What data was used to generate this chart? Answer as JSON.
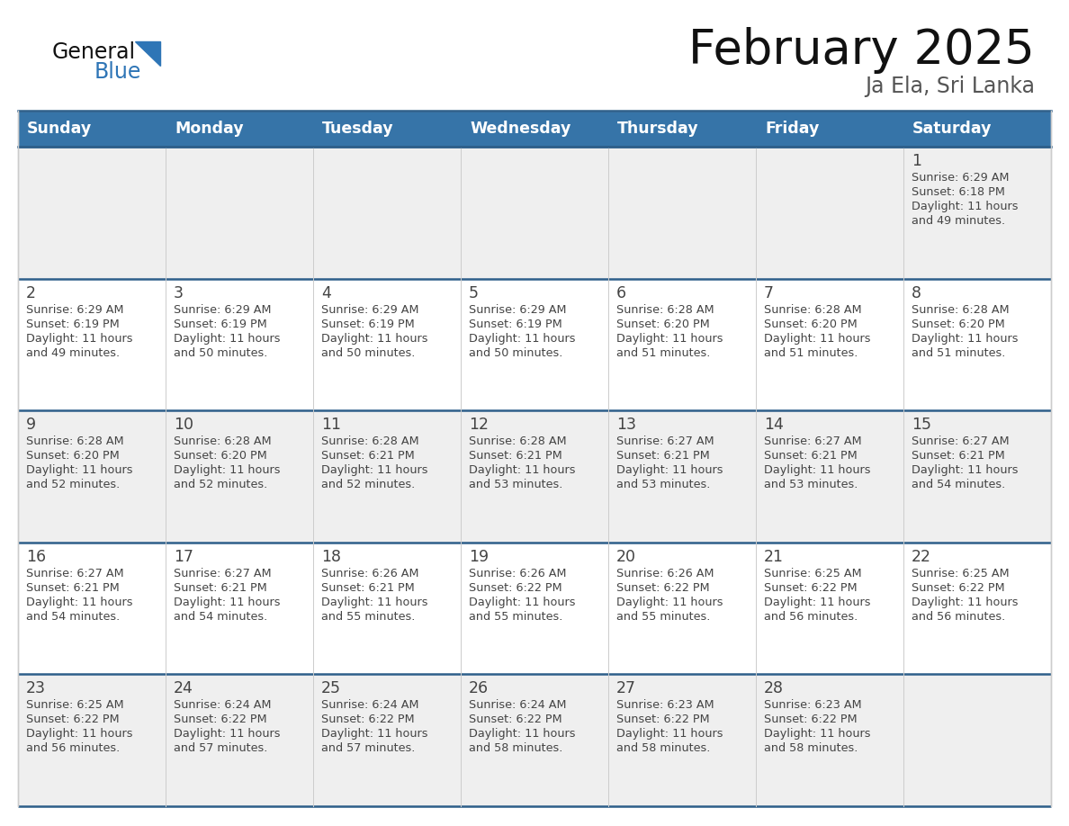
{
  "title": "February 2025",
  "subtitle": "Ja Ela, Sri Lanka",
  "days_of_week": [
    "Sunday",
    "Monday",
    "Tuesday",
    "Wednesday",
    "Thursday",
    "Friday",
    "Saturday"
  ],
  "header_bg": "#3674A8",
  "header_text": "#FFFFFF",
  "row_bg_odd": "#EFEFEF",
  "row_bg_even": "#FFFFFF",
  "row_divider_color": "#2E5F8A",
  "cell_border_color": "#CCCCCC",
  "outer_border_color": "#CCCCCC",
  "day_num_color": "#444444",
  "cell_text_color": "#444444",
  "title_color": "#111111",
  "subtitle_color": "#555555",
  "logo_general_color": "#111111",
  "logo_blue_color": "#2E75B6",
  "calendar_data": [
    [
      null,
      null,
      null,
      null,
      null,
      null,
      {
        "day": 1,
        "sunrise": "6:29 AM",
        "sunset": "6:18 PM",
        "daylight": "11 hours and 49 minutes."
      }
    ],
    [
      {
        "day": 2,
        "sunrise": "6:29 AM",
        "sunset": "6:19 PM",
        "daylight": "11 hours and 49 minutes."
      },
      {
        "day": 3,
        "sunrise": "6:29 AM",
        "sunset": "6:19 PM",
        "daylight": "11 hours and 50 minutes."
      },
      {
        "day": 4,
        "sunrise": "6:29 AM",
        "sunset": "6:19 PM",
        "daylight": "11 hours and 50 minutes."
      },
      {
        "day": 5,
        "sunrise": "6:29 AM",
        "sunset": "6:19 PM",
        "daylight": "11 hours and 50 minutes."
      },
      {
        "day": 6,
        "sunrise": "6:28 AM",
        "sunset": "6:20 PM",
        "daylight": "11 hours and 51 minutes."
      },
      {
        "day": 7,
        "sunrise": "6:28 AM",
        "sunset": "6:20 PM",
        "daylight": "11 hours and 51 minutes."
      },
      {
        "day": 8,
        "sunrise": "6:28 AM",
        "sunset": "6:20 PM",
        "daylight": "11 hours and 51 minutes."
      }
    ],
    [
      {
        "day": 9,
        "sunrise": "6:28 AM",
        "sunset": "6:20 PM",
        "daylight": "11 hours and 52 minutes."
      },
      {
        "day": 10,
        "sunrise": "6:28 AM",
        "sunset": "6:20 PM",
        "daylight": "11 hours and 52 minutes."
      },
      {
        "day": 11,
        "sunrise": "6:28 AM",
        "sunset": "6:21 PM",
        "daylight": "11 hours and 52 minutes."
      },
      {
        "day": 12,
        "sunrise": "6:28 AM",
        "sunset": "6:21 PM",
        "daylight": "11 hours and 53 minutes."
      },
      {
        "day": 13,
        "sunrise": "6:27 AM",
        "sunset": "6:21 PM",
        "daylight": "11 hours and 53 minutes."
      },
      {
        "day": 14,
        "sunrise": "6:27 AM",
        "sunset": "6:21 PM",
        "daylight": "11 hours and 53 minutes."
      },
      {
        "day": 15,
        "sunrise": "6:27 AM",
        "sunset": "6:21 PM",
        "daylight": "11 hours and 54 minutes."
      }
    ],
    [
      {
        "day": 16,
        "sunrise": "6:27 AM",
        "sunset": "6:21 PM",
        "daylight": "11 hours and 54 minutes."
      },
      {
        "day": 17,
        "sunrise": "6:27 AM",
        "sunset": "6:21 PM",
        "daylight": "11 hours and 54 minutes."
      },
      {
        "day": 18,
        "sunrise": "6:26 AM",
        "sunset": "6:21 PM",
        "daylight": "11 hours and 55 minutes."
      },
      {
        "day": 19,
        "sunrise": "6:26 AM",
        "sunset": "6:22 PM",
        "daylight": "11 hours and 55 minutes."
      },
      {
        "day": 20,
        "sunrise": "6:26 AM",
        "sunset": "6:22 PM",
        "daylight": "11 hours and 55 minutes."
      },
      {
        "day": 21,
        "sunrise": "6:25 AM",
        "sunset": "6:22 PM",
        "daylight": "11 hours and 56 minutes."
      },
      {
        "day": 22,
        "sunrise": "6:25 AM",
        "sunset": "6:22 PM",
        "daylight": "11 hours and 56 minutes."
      }
    ],
    [
      {
        "day": 23,
        "sunrise": "6:25 AM",
        "sunset": "6:22 PM",
        "daylight": "11 hours and 56 minutes."
      },
      {
        "day": 24,
        "sunrise": "6:24 AM",
        "sunset": "6:22 PM",
        "daylight": "11 hours and 57 minutes."
      },
      {
        "day": 25,
        "sunrise": "6:24 AM",
        "sunset": "6:22 PM",
        "daylight": "11 hours and 57 minutes."
      },
      {
        "day": 26,
        "sunrise": "6:24 AM",
        "sunset": "6:22 PM",
        "daylight": "11 hours and 58 minutes."
      },
      {
        "day": 27,
        "sunrise": "6:23 AM",
        "sunset": "6:22 PM",
        "daylight": "11 hours and 58 minutes."
      },
      {
        "day": 28,
        "sunrise": "6:23 AM",
        "sunset": "6:22 PM",
        "daylight": "11 hours and 58 minutes."
      },
      null
    ]
  ],
  "figsize": [
    11.88,
    9.18
  ],
  "dpi": 100
}
